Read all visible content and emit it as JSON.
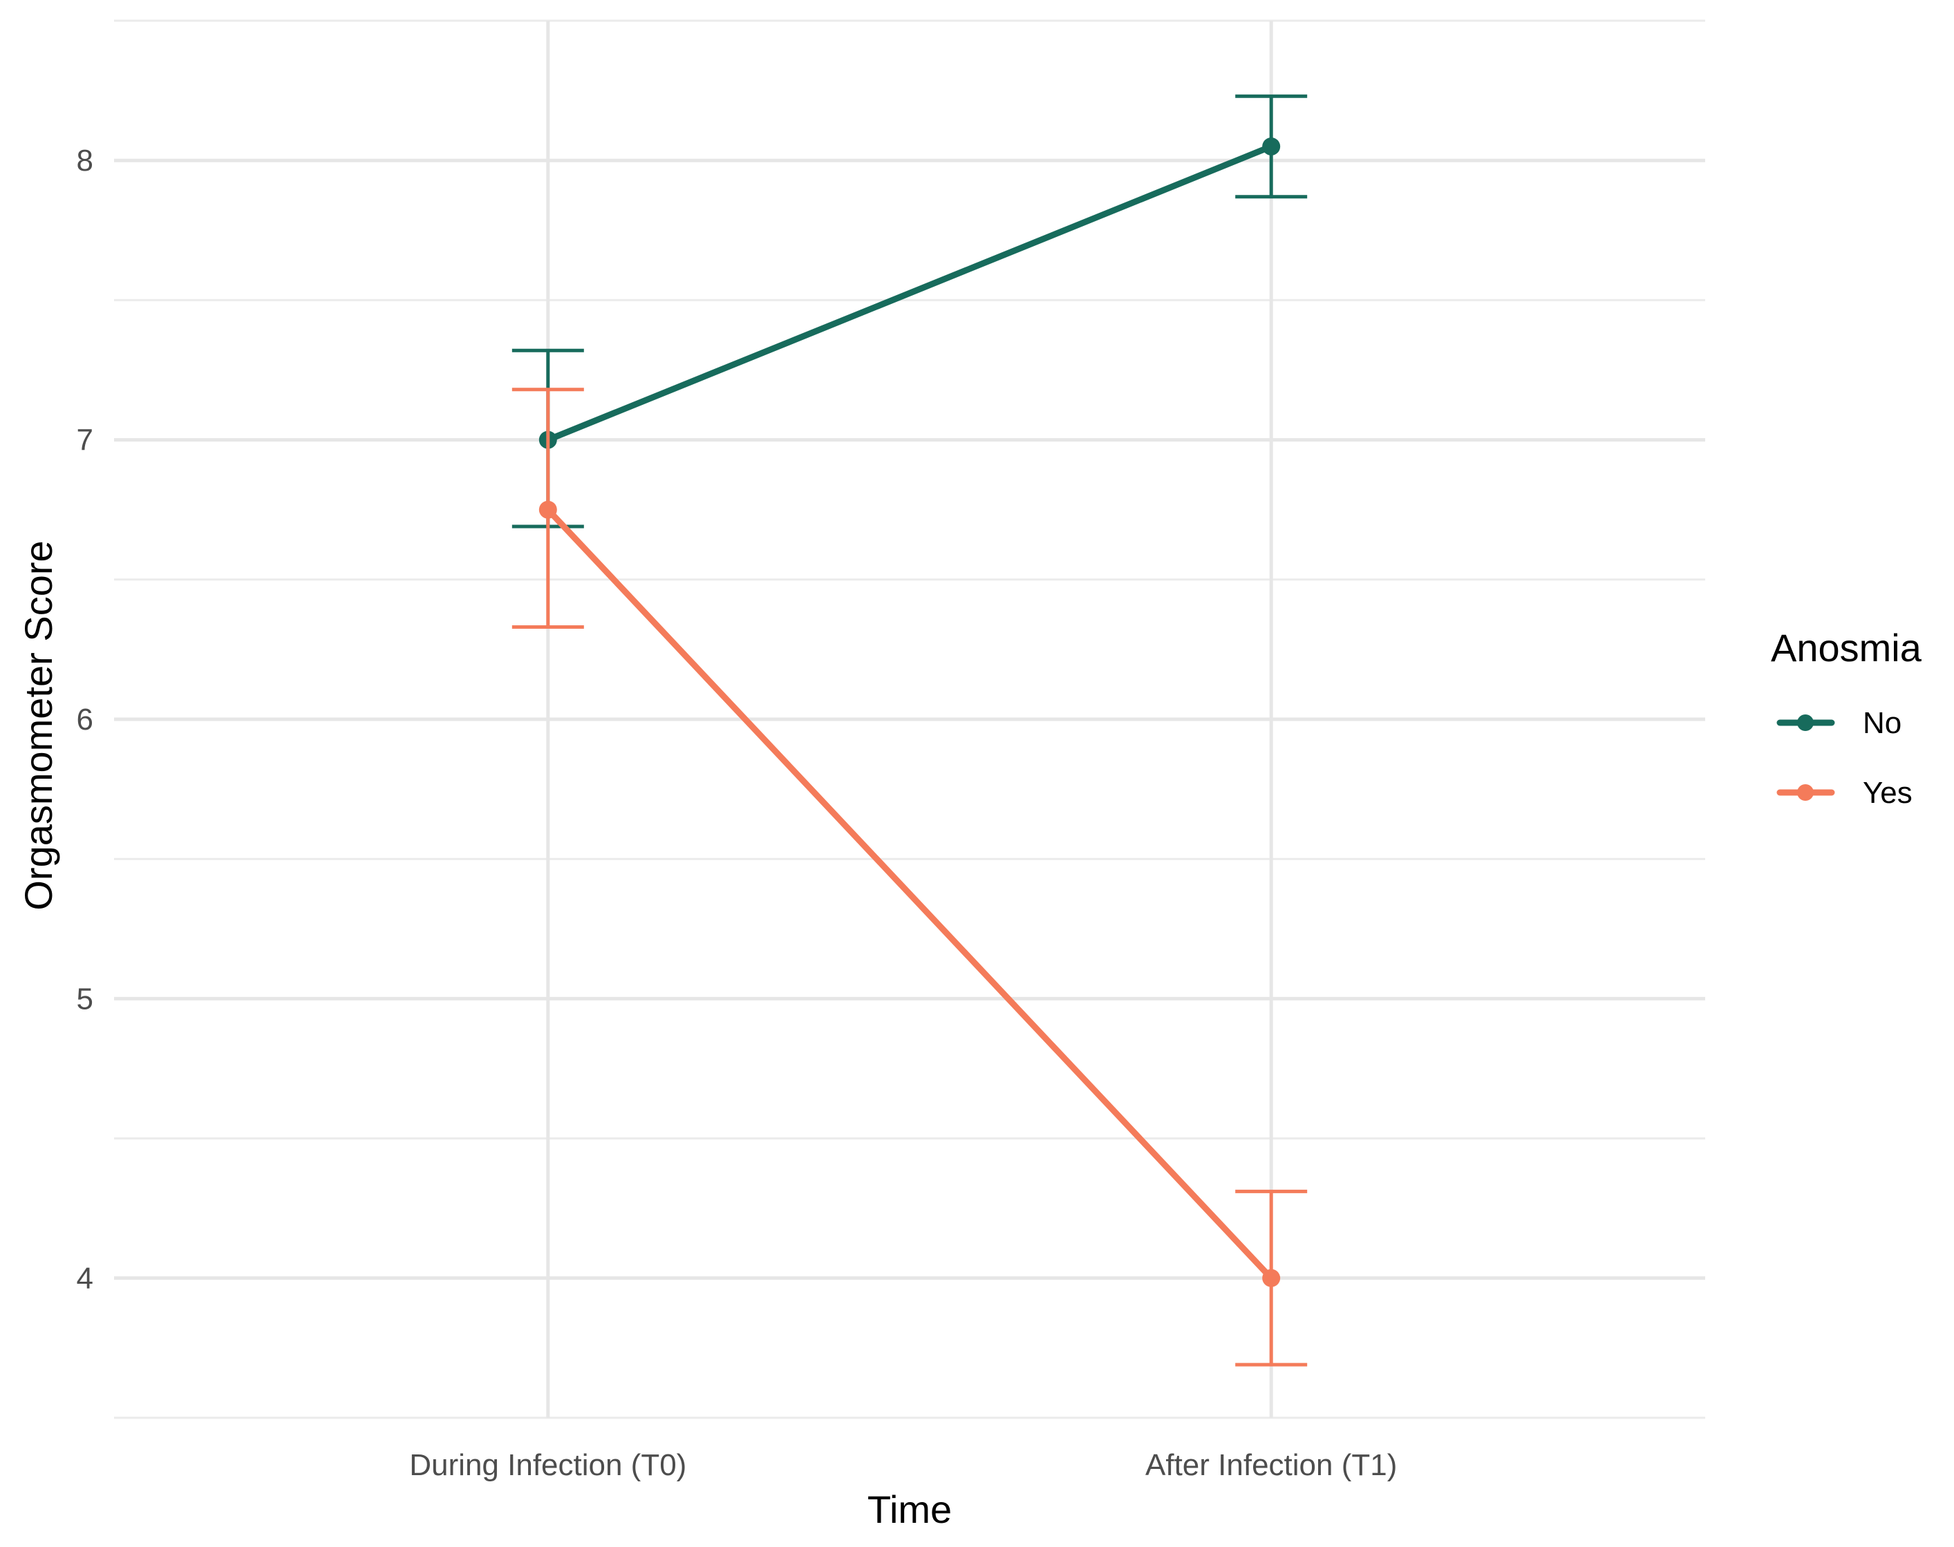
{
  "chart_data": {
    "type": "line",
    "title": "",
    "xlabel": "Time",
    "ylabel": "Orgasmometer Score",
    "categories": [
      "During Infection (T0)",
      "After Infection (T1)"
    ],
    "yticks": [
      4,
      5,
      6,
      7,
      8
    ],
    "ylim": [
      3.5,
      8.5
    ],
    "grid": true,
    "error_bars": true,
    "legend": {
      "title": "Anosmia",
      "position": "right"
    },
    "series": [
      {
        "name": "No",
        "color": "#176b5c",
        "values": [
          7.0,
          8.05
        ],
        "lower": [
          6.69,
          7.87
        ],
        "upper": [
          7.32,
          8.23
        ]
      },
      {
        "name": "Yes",
        "color": "#f47b5a",
        "values": [
          6.75,
          4.0
        ],
        "lower": [
          6.33,
          3.69
        ],
        "upper": [
          7.18,
          4.31
        ]
      }
    ]
  }
}
